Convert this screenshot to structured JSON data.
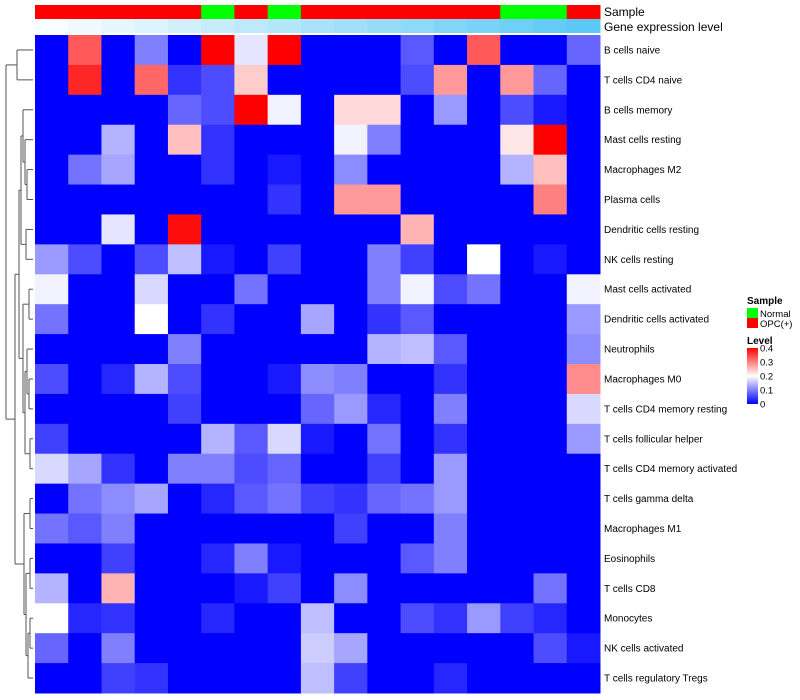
{
  "chart_data": {
    "type": "heatmap",
    "annotation_labels": {
      "sample": "Sample",
      "gene_expression": "Gene expression level"
    },
    "sample_annotation": [
      "OPC(+)",
      "OPC(+)",
      "OPC(+)",
      "OPC(+)",
      "OPC(+)",
      "Normal",
      "OPC(+)",
      "Normal",
      "OPC(+)",
      "OPC(+)",
      "OPC(+)",
      "OPC(+)",
      "OPC(+)",
      "OPC(+)",
      "Normal",
      "Normal",
      "OPC(+)"
    ],
    "expression_annotation": [
      0.02,
      0.05,
      0.08,
      0.11,
      0.14,
      0.17,
      0.2,
      0.23,
      0.26,
      0.29,
      0.32,
      0.35,
      0.38,
      0.41,
      0.44,
      0.47,
      0.5
    ],
    "rows": [
      "B cells naive",
      "T cells CD4 naive",
      "B cells memory",
      "Mast cells resting",
      "Macrophages M2",
      "Plasma cells",
      "Dendritic cells resting",
      "NK cells resting",
      "Mast cells activated",
      "Dendritic cells activated",
      "Neutrophils",
      "Macrophages M0",
      "T cells CD4 memory resting",
      "T cells follicular helper",
      "T cells CD4 memory activated",
      "T cells gamma delta",
      "Macrophages M1",
      "Eosinophils",
      "T cells CD8",
      "Monocytes",
      "NK cells activated",
      "T cells regulatory  Tregs"
    ],
    "values": [
      [
        0,
        0.33,
        0,
        0.1,
        0,
        0.4,
        0.18,
        0.4,
        0,
        0,
        0,
        0.07,
        0,
        0.33,
        0,
        0,
        0.08
      ],
      [
        0,
        0.37,
        0,
        0.32,
        0.04,
        0.06,
        0.24,
        0,
        0,
        0,
        0,
        0.06,
        0.28,
        0,
        0.28,
        0.08,
        0
      ],
      [
        0,
        0,
        0,
        0,
        0.08,
        0.06,
        0.4,
        0.19,
        0,
        0.23,
        0.23,
        0,
        0.12,
        0,
        0.06,
        0.02,
        0
      ],
      [
        0,
        0,
        0.14,
        0,
        0.25,
        0.04,
        0,
        0,
        0,
        0.19,
        0.1,
        0,
        0,
        0,
        0.22,
        0.4,
        0
      ],
      [
        0,
        0.09,
        0.13,
        0,
        0,
        0.04,
        0,
        0.02,
        0,
        0.11,
        0,
        0,
        0,
        0,
        0.14,
        0.25,
        0
      ],
      [
        0,
        0,
        0,
        0,
        0,
        0,
        0,
        0.04,
        0,
        0.28,
        0.28,
        0,
        0,
        0,
        0,
        0.3,
        0
      ],
      [
        0,
        0,
        0.18,
        0,
        0.39,
        0,
        0,
        0,
        0,
        0,
        0,
        0.26,
        0,
        0,
        0,
        0,
        0
      ],
      [
        0.12,
        0.06,
        0,
        0.06,
        0.15,
        0.02,
        0,
        0.05,
        0,
        0,
        0.1,
        0.05,
        0,
        0.2,
        0,
        0.02,
        0
      ],
      [
        0.19,
        0,
        0,
        0.17,
        0,
        0,
        0.09,
        0,
        0,
        0,
        0.1,
        0.19,
        0.06,
        0.09,
        0,
        0,
        0.19
      ],
      [
        0.09,
        0,
        0,
        0.2,
        0,
        0.04,
        0,
        0,
        0.13,
        0,
        0.04,
        0.07,
        0,
        0,
        0,
        0,
        0.12
      ],
      [
        0,
        0,
        0,
        0,
        0.1,
        0,
        0,
        0,
        0,
        0,
        0.14,
        0.15,
        0.07,
        0,
        0,
        0,
        0.11
      ],
      [
        0.06,
        0,
        0.03,
        0.14,
        0.06,
        0,
        0,
        0.02,
        0.11,
        0.1,
        0,
        0,
        0.04,
        0,
        0,
        0,
        0.29
      ],
      [
        0,
        0,
        0,
        0,
        0.05,
        0,
        0,
        0,
        0.08,
        0.12,
        0.03,
        0,
        0.1,
        0,
        0,
        0,
        0.17
      ],
      [
        0.05,
        0,
        0,
        0,
        0,
        0.14,
        0.07,
        0.17,
        0.02,
        0,
        0.09,
        0,
        0.04,
        0,
        0,
        0,
        0.12
      ],
      [
        0.17,
        0.13,
        0.04,
        0,
        0.1,
        0.1,
        0.06,
        0.08,
        0,
        0,
        0.05,
        0,
        0.12,
        0,
        0,
        0,
        0
      ],
      [
        0,
        0.09,
        0.11,
        0.13,
        0,
        0.03,
        0.07,
        0.09,
        0.05,
        0.04,
        0.08,
        0.09,
        0.12,
        0,
        0,
        0,
        0
      ],
      [
        0.09,
        0.07,
        0.1,
        0,
        0,
        0,
        0,
        0,
        0,
        0.05,
        0,
        0,
        0.1,
        0,
        0,
        0,
        0
      ],
      [
        0,
        0,
        0.05,
        0,
        0,
        0.03,
        0.1,
        0.02,
        0,
        0,
        0,
        0.07,
        0.1,
        0,
        0,
        0,
        0
      ],
      [
        0.14,
        0,
        0.26,
        0,
        0,
        0,
        0.02,
        0.05,
        0,
        0.11,
        0,
        0,
        0,
        0,
        0,
        0.09,
        0
      ],
      [
        0.2,
        0.03,
        0.04,
        0,
        0,
        0.03,
        0,
        0,
        0.15,
        0,
        0,
        0.06,
        0.04,
        0.12,
        0.05,
        0.03,
        0
      ],
      [
        0.08,
        0,
        0.1,
        0,
        0,
        0,
        0,
        0,
        0.16,
        0.13,
        0,
        0,
        0,
        0,
        0,
        0.06,
        0.02
      ],
      [
        0,
        0,
        0.05,
        0.04,
        0,
        0,
        0,
        0,
        0.15,
        0.05,
        0,
        0,
        0.03,
        0,
        0,
        0,
        0
      ]
    ],
    "legend": {
      "sample_title": "Sample",
      "sample_items": [
        {
          "label": "Normal",
          "color": "#00ff00"
        },
        {
          "label": "OPC(+)",
          "color": "#ff0000"
        }
      ],
      "level_title": "Level",
      "level_ticks": [
        "0.4",
        "0.3",
        "0.2",
        "0.1",
        "0"
      ],
      "level_tick_values": [
        0.4,
        0.3,
        0.2,
        0.1,
        0
      ]
    },
    "color_scale": {
      "min": 0,
      "mid": 0.2,
      "max": 0.4,
      "low_color": "#0000ff",
      "mid_color": "#ffffff",
      "high_color": "#ff0000"
    },
    "expression_scale": {
      "low_color": "#ffffff",
      "high_color": "#5bc8f5"
    },
    "dendrogram_color": "#555555"
  }
}
